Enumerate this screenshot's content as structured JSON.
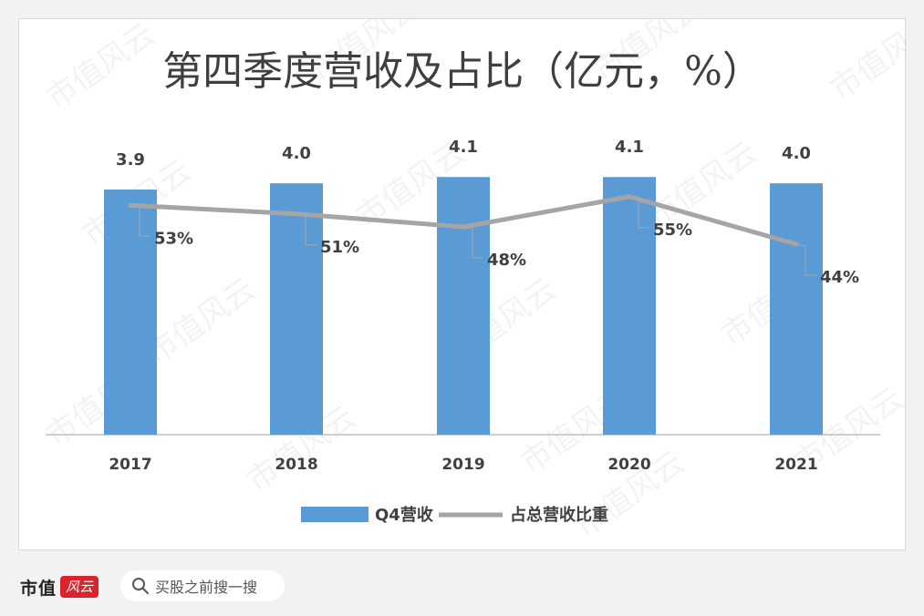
{
  "chart_data": {
    "type": "bar",
    "title": "第四季度营收及占比（亿元，%）",
    "categories": [
      "2017",
      "2018",
      "2019",
      "2020",
      "2021"
    ],
    "series": [
      {
        "name": "Q4营收",
        "kind": "bar",
        "values": [
          3.9,
          4.0,
          4.1,
          4.1,
          4.0
        ],
        "labels": [
          "3.9",
          "4.0",
          "4.1",
          "4.1",
          "4.0"
        ],
        "color": "#5b9bd5"
      },
      {
        "name": "占总营收比重",
        "kind": "line",
        "values": [
          53,
          51,
          48,
          55,
          44
        ],
        "labels": [
          "53%",
          "51%",
          "48%",
          "55%",
          "44%"
        ],
        "color": "#a5a5a5"
      }
    ],
    "bar_ylim": [
      0,
      4.35
    ],
    "line_ylim": [
      0,
      60
    ],
    "legend_position": "bottom"
  },
  "watermark": "市值风云",
  "footer": {
    "brand": "市值",
    "brand_mark": "风云",
    "search_placeholder": "买股之前搜一搜"
  }
}
